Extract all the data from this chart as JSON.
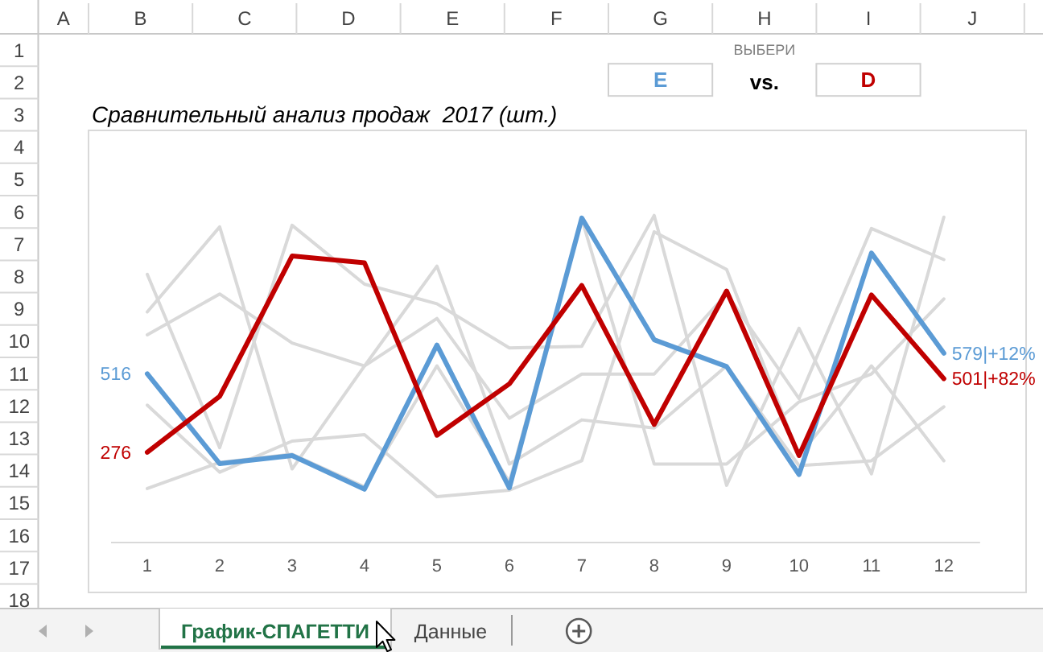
{
  "chart_data": {
    "type": "line",
    "title": "Сравнительный анализ продаж  2017 (шт.)",
    "x": [
      1,
      2,
      3,
      4,
      5,
      6,
      7,
      8,
      9,
      10,
      11,
      12
    ],
    "xlim": [
      0.5,
      12.5
    ],
    "xticks": [
      1,
      2,
      3,
      4,
      5,
      6,
      7,
      8,
      9,
      10,
      11,
      12
    ],
    "ylim": [
      0,
      1260
    ],
    "tick_labels": "x",
    "legend": "top right",
    "series": [
      {
        "color": "#d9d9d9",
        "values": [
          705,
          965,
          225,
          540,
          845,
          240,
          375,
          350,
          540,
          235,
          250,
          415
        ]
      },
      {
        "color": "#d9d9d9",
        "values": [
          820,
          290,
          970,
          790,
          730,
          595,
          600,
          1000,
          175,
          655,
          210,
          995
        ]
      },
      {
        "color": "#d9d9d9",
        "values": [
          635,
          760,
          610,
          540,
          685,
          380,
          515,
          515,
          760,
          440,
          960,
          865
        ]
      },
      {
        "color": "#d9d9d9",
        "values": [
          420,
          215,
          310,
          330,
          140,
          160,
          250,
          950,
          835,
          265,
          540,
          250
        ]
      },
      {
        "color": "#d9d9d9",
        "values": [
          165,
          245,
          270,
          170,
          540,
          185,
          990,
          240,
          240,
          430,
          515,
          745
        ]
      },
      {
        "name": "E",
        "color": "#5b9bd5",
        "values": [
          516,
          241,
          266,
          163,
          604,
          167,
          992,
          620,
          538,
          208,
          885,
          579
        ],
        "value_labels": [
          "516",
          null,
          null,
          null,
          null,
          null,
          null,
          null,
          null,
          null,
          null,
          "579|+12%"
        ]
      },
      {
        "name": "D",
        "color": "#c00000",
        "values": [
          276,
          447,
          876,
          855,
          328,
          485,
          786,
          361,
          769,
          266,
          757,
          501
        ],
        "value_labels": [
          "276",
          null,
          null,
          null,
          null,
          null,
          null,
          null,
          null,
          null,
          null,
          "501|+82%"
        ]
      }
    ],
    "annotations": [
      "A",
      "B",
      "C",
      "D",
      "E",
      "F",
      "G",
      "H",
      "I",
      "J",
      "1",
      "ВЫБЕРИ",
      "2",
      "vs.",
      "3",
      "4",
      "5",
      "6",
      "7",
      "8",
      "9",
      "10",
      "11",
      "12",
      "13",
      "14",
      "15",
      "16",
      "17",
      "18",
      "График-СПАГЕТТИ",
      "Данные"
    ]
  }
}
